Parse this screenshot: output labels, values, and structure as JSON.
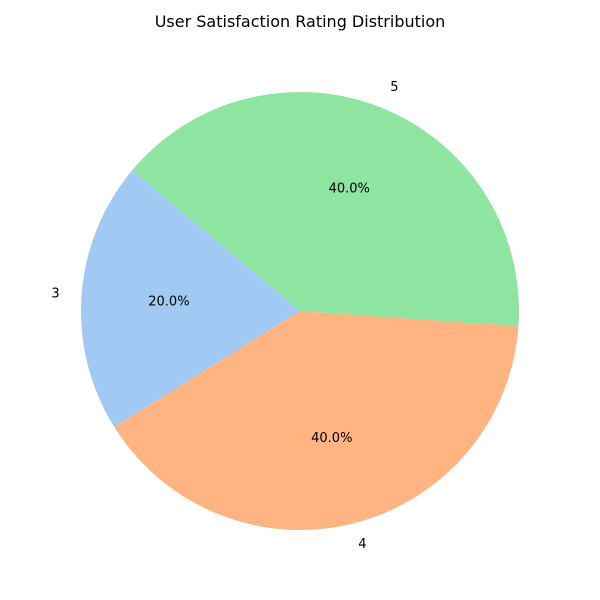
{
  "chart_data": {
    "type": "pie",
    "title": "User Satisfaction Rating Distribution",
    "slices": [
      {
        "label": "3",
        "value": 20.0,
        "percent_label": "20.0%",
        "color": "#a1c9f4"
      },
      {
        "label": "4",
        "value": 40.0,
        "percent_label": "40.0%",
        "color": "#ffb482"
      },
      {
        "label": "5",
        "value": 40.0,
        "percent_label": "40.0%",
        "color": "#8de5a1"
      }
    ],
    "start_angle_deg": 140,
    "direction": "counterclockwise",
    "legend": "none"
  }
}
